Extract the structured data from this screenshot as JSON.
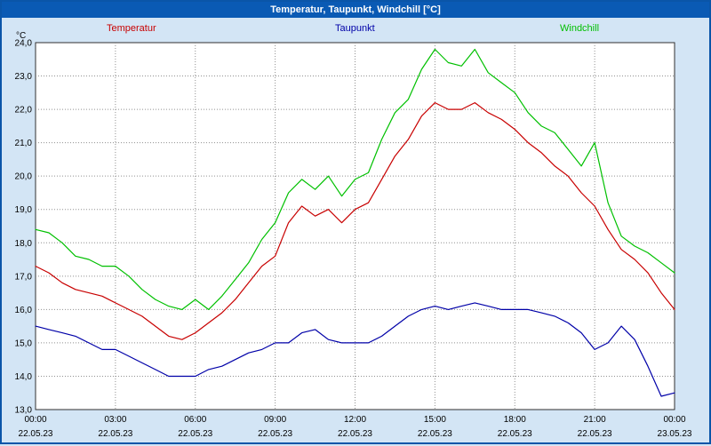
{
  "title": "Temperatur, Taupunkt, Windchill [°C]",
  "chart_data": {
    "type": "line",
    "title": "Temperatur, Taupunkt, Windchill [°C]",
    "x_unit": "hours",
    "x_min": 0,
    "x_max": 24,
    "x_step_hours": 0.5,
    "y_min": 13,
    "y_max": 24,
    "y_axis_unit": "°C",
    "grid": "dotted",
    "legend_position": "top",
    "x_tick_hours": [
      0,
      3,
      6,
      9,
      12,
      15,
      18,
      21,
      24
    ],
    "x_tick_time_labels": [
      "00:00",
      "03:00",
      "06:00",
      "09:00",
      "12:00",
      "15:00",
      "18:00",
      "21:00",
      "00:00"
    ],
    "x_tick_date_labels": [
      "22.05.23",
      "22.05.23",
      "22.05.23",
      "22.05.23",
      "22.05.23",
      "22.05.23",
      "22.05.23",
      "22.05.23",
      "23.05.23"
    ],
    "y_tick_values": [
      13,
      14,
      15,
      16,
      17,
      18,
      19,
      20,
      21,
      22,
      23,
      24
    ],
    "y_tick_labels": [
      "13,0",
      "14,0",
      "15,0",
      "16,0",
      "17,0",
      "18,0",
      "19,0",
      "20,0",
      "21,0",
      "22,0",
      "23,0",
      "24,0"
    ],
    "series": [
      {
        "name": "Temperatur",
        "color": "#c80000",
        "values": [
          17.3,
          17.1,
          16.8,
          16.6,
          16.5,
          16.4,
          16.2,
          16.0,
          15.8,
          15.5,
          15.2,
          15.1,
          15.3,
          15.6,
          15.9,
          16.3,
          16.8,
          17.3,
          17.6,
          18.6,
          19.1,
          18.8,
          19.0,
          18.6,
          19.0,
          19.2,
          19.9,
          20.6,
          21.1,
          21.8,
          22.2,
          22.0,
          22.0,
          22.2,
          21.9,
          21.7,
          21.4,
          21.0,
          20.7,
          20.3,
          20.0,
          19.5,
          19.1,
          18.4,
          17.8,
          17.5,
          17.1,
          16.5,
          16.0
        ]
      },
      {
        "name": "Taupunkt",
        "color": "#0000a8",
        "values": [
          15.5,
          15.4,
          15.3,
          15.2,
          15.0,
          14.8,
          14.8,
          14.6,
          14.4,
          14.2,
          14.0,
          14.0,
          14.0,
          14.2,
          14.3,
          14.5,
          14.7,
          14.8,
          15.0,
          15.0,
          15.3,
          15.4,
          15.1,
          15.0,
          15.0,
          15.0,
          15.2,
          15.5,
          15.8,
          16.0,
          16.1,
          16.0,
          16.1,
          16.2,
          16.1,
          16.0,
          16.0,
          16.0,
          15.9,
          15.8,
          15.6,
          15.3,
          14.8,
          15.0,
          15.5,
          15.1,
          14.3,
          13.4,
          13.5
        ]
      },
      {
        "name": "Windchill",
        "color": "#00c000",
        "values": [
          18.4,
          18.3,
          18.0,
          17.6,
          17.5,
          17.3,
          17.3,
          17.0,
          16.6,
          16.3,
          16.1,
          16.0,
          16.3,
          16.0,
          16.4,
          16.9,
          17.4,
          18.1,
          18.6,
          19.5,
          19.9,
          19.6,
          20.0,
          19.4,
          19.9,
          20.1,
          21.1,
          21.9,
          22.3,
          23.2,
          23.8,
          23.4,
          23.3,
          23.8,
          23.1,
          22.8,
          22.5,
          21.9,
          21.5,
          21.3,
          20.8,
          20.3,
          21.0,
          19.2,
          18.2,
          17.9,
          17.7,
          17.4,
          17.1
        ]
      }
    ]
  }
}
